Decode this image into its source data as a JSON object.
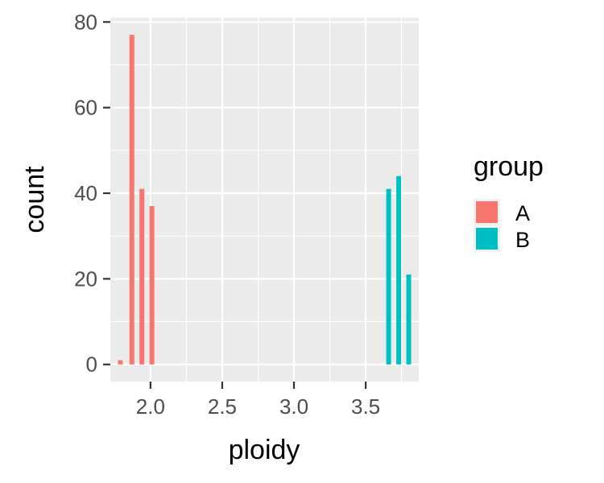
{
  "chart_data": {
    "type": "bar",
    "xlabel": "ploidy",
    "ylabel": "count",
    "xlim": [
      1.72,
      3.87
    ],
    "ylim": [
      -4,
      81
    ],
    "x_ticks": [
      2.0,
      2.5,
      3.0,
      3.5
    ],
    "x_tick_labels": [
      "2.0",
      "2.5",
      "3.0",
      "3.5"
    ],
    "y_ticks": [
      0,
      20,
      40,
      60,
      80
    ],
    "y_tick_labels": [
      "0",
      "20",
      "40",
      "60",
      "80"
    ],
    "grid": true,
    "legend_title": "group",
    "legend_position": "right",
    "series": [
      {
        "name": "A",
        "color": "#F8766D",
        "x": [
          1.79,
          1.87,
          1.94,
          2.01
        ],
        "values": [
          1,
          77,
          41,
          37
        ]
      },
      {
        "name": "B",
        "color": "#00BFC4",
        "x": [
          3.66,
          3.73,
          3.8
        ],
        "values": [
          41,
          44,
          21
        ]
      }
    ]
  }
}
